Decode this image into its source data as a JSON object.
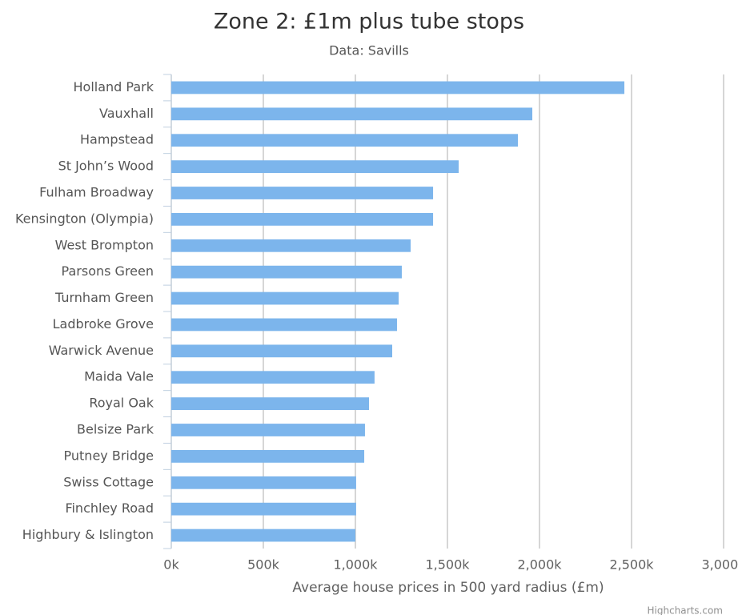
{
  "chart_data": {
    "type": "bar",
    "orientation": "horizontal",
    "title": "Zone 2: £1m plus tube stops",
    "subtitle": "Data: Savills",
    "x_label": "Average house prices in 500 yard radius (£m)",
    "credits": "Highcharts.com",
    "categories": [
      "Holland Park",
      "Vauxhall",
      "Hampstead",
      "St John’s Wood",
      "Fulham Broadway",
      "Kensington (Olympia)",
      "West Brompton",
      "Parsons Green",
      "Turnham Green",
      "Ladbroke Grove",
      "Warwick Avenue",
      "Maida Vale",
      "Royal Oak",
      "Belsize Park",
      "Putney Bridge",
      "Swiss Cottage",
      "Finchley Road",
      "Highbury & Islington"
    ],
    "values": [
      2461000,
      1961000,
      1883000,
      1561000,
      1422000,
      1422000,
      1300000,
      1252000,
      1235000,
      1226000,
      1200000,
      1104000,
      1074000,
      1052000,
      1048000,
      1004000,
      1004000,
      1000000
    ],
    "color": "#7cb5ec",
    "xlim": [
      0,
      3000000
    ],
    "xticks": [
      {
        "value": 0,
        "label": "0k"
      },
      {
        "value": 500000,
        "label": "500k"
      },
      {
        "value": 1000000,
        "label": "1,000k"
      },
      {
        "value": 1500000,
        "label": "1,500k"
      },
      {
        "value": 2000000,
        "label": "2,000k"
      },
      {
        "value": 2500000,
        "label": "2,500k"
      },
      {
        "value": 3000000,
        "label": "3,000k"
      }
    ],
    "grid": true
  }
}
